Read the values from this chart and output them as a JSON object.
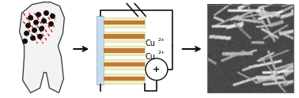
{
  "bg_color": "#ffffff",
  "tooth_color": "#f2f2f2",
  "tooth_outline": "#444444",
  "red_line_color": "#dd0000",
  "black_dot_color": "#111111",
  "arrow_color": "#111111",
  "electrode_blue": "#c5dced",
  "electrode_edge": "#9abccc",
  "wire_copper": "#c07838",
  "wire_bg": "#eeedc0",
  "wire_bg_edge": "#cccc88",
  "circuit_line_color": "#111111",
  "plus_label": "+",
  "n_wires": 5,
  "sem_dark": 0.25,
  "sem_light": 0.85
}
